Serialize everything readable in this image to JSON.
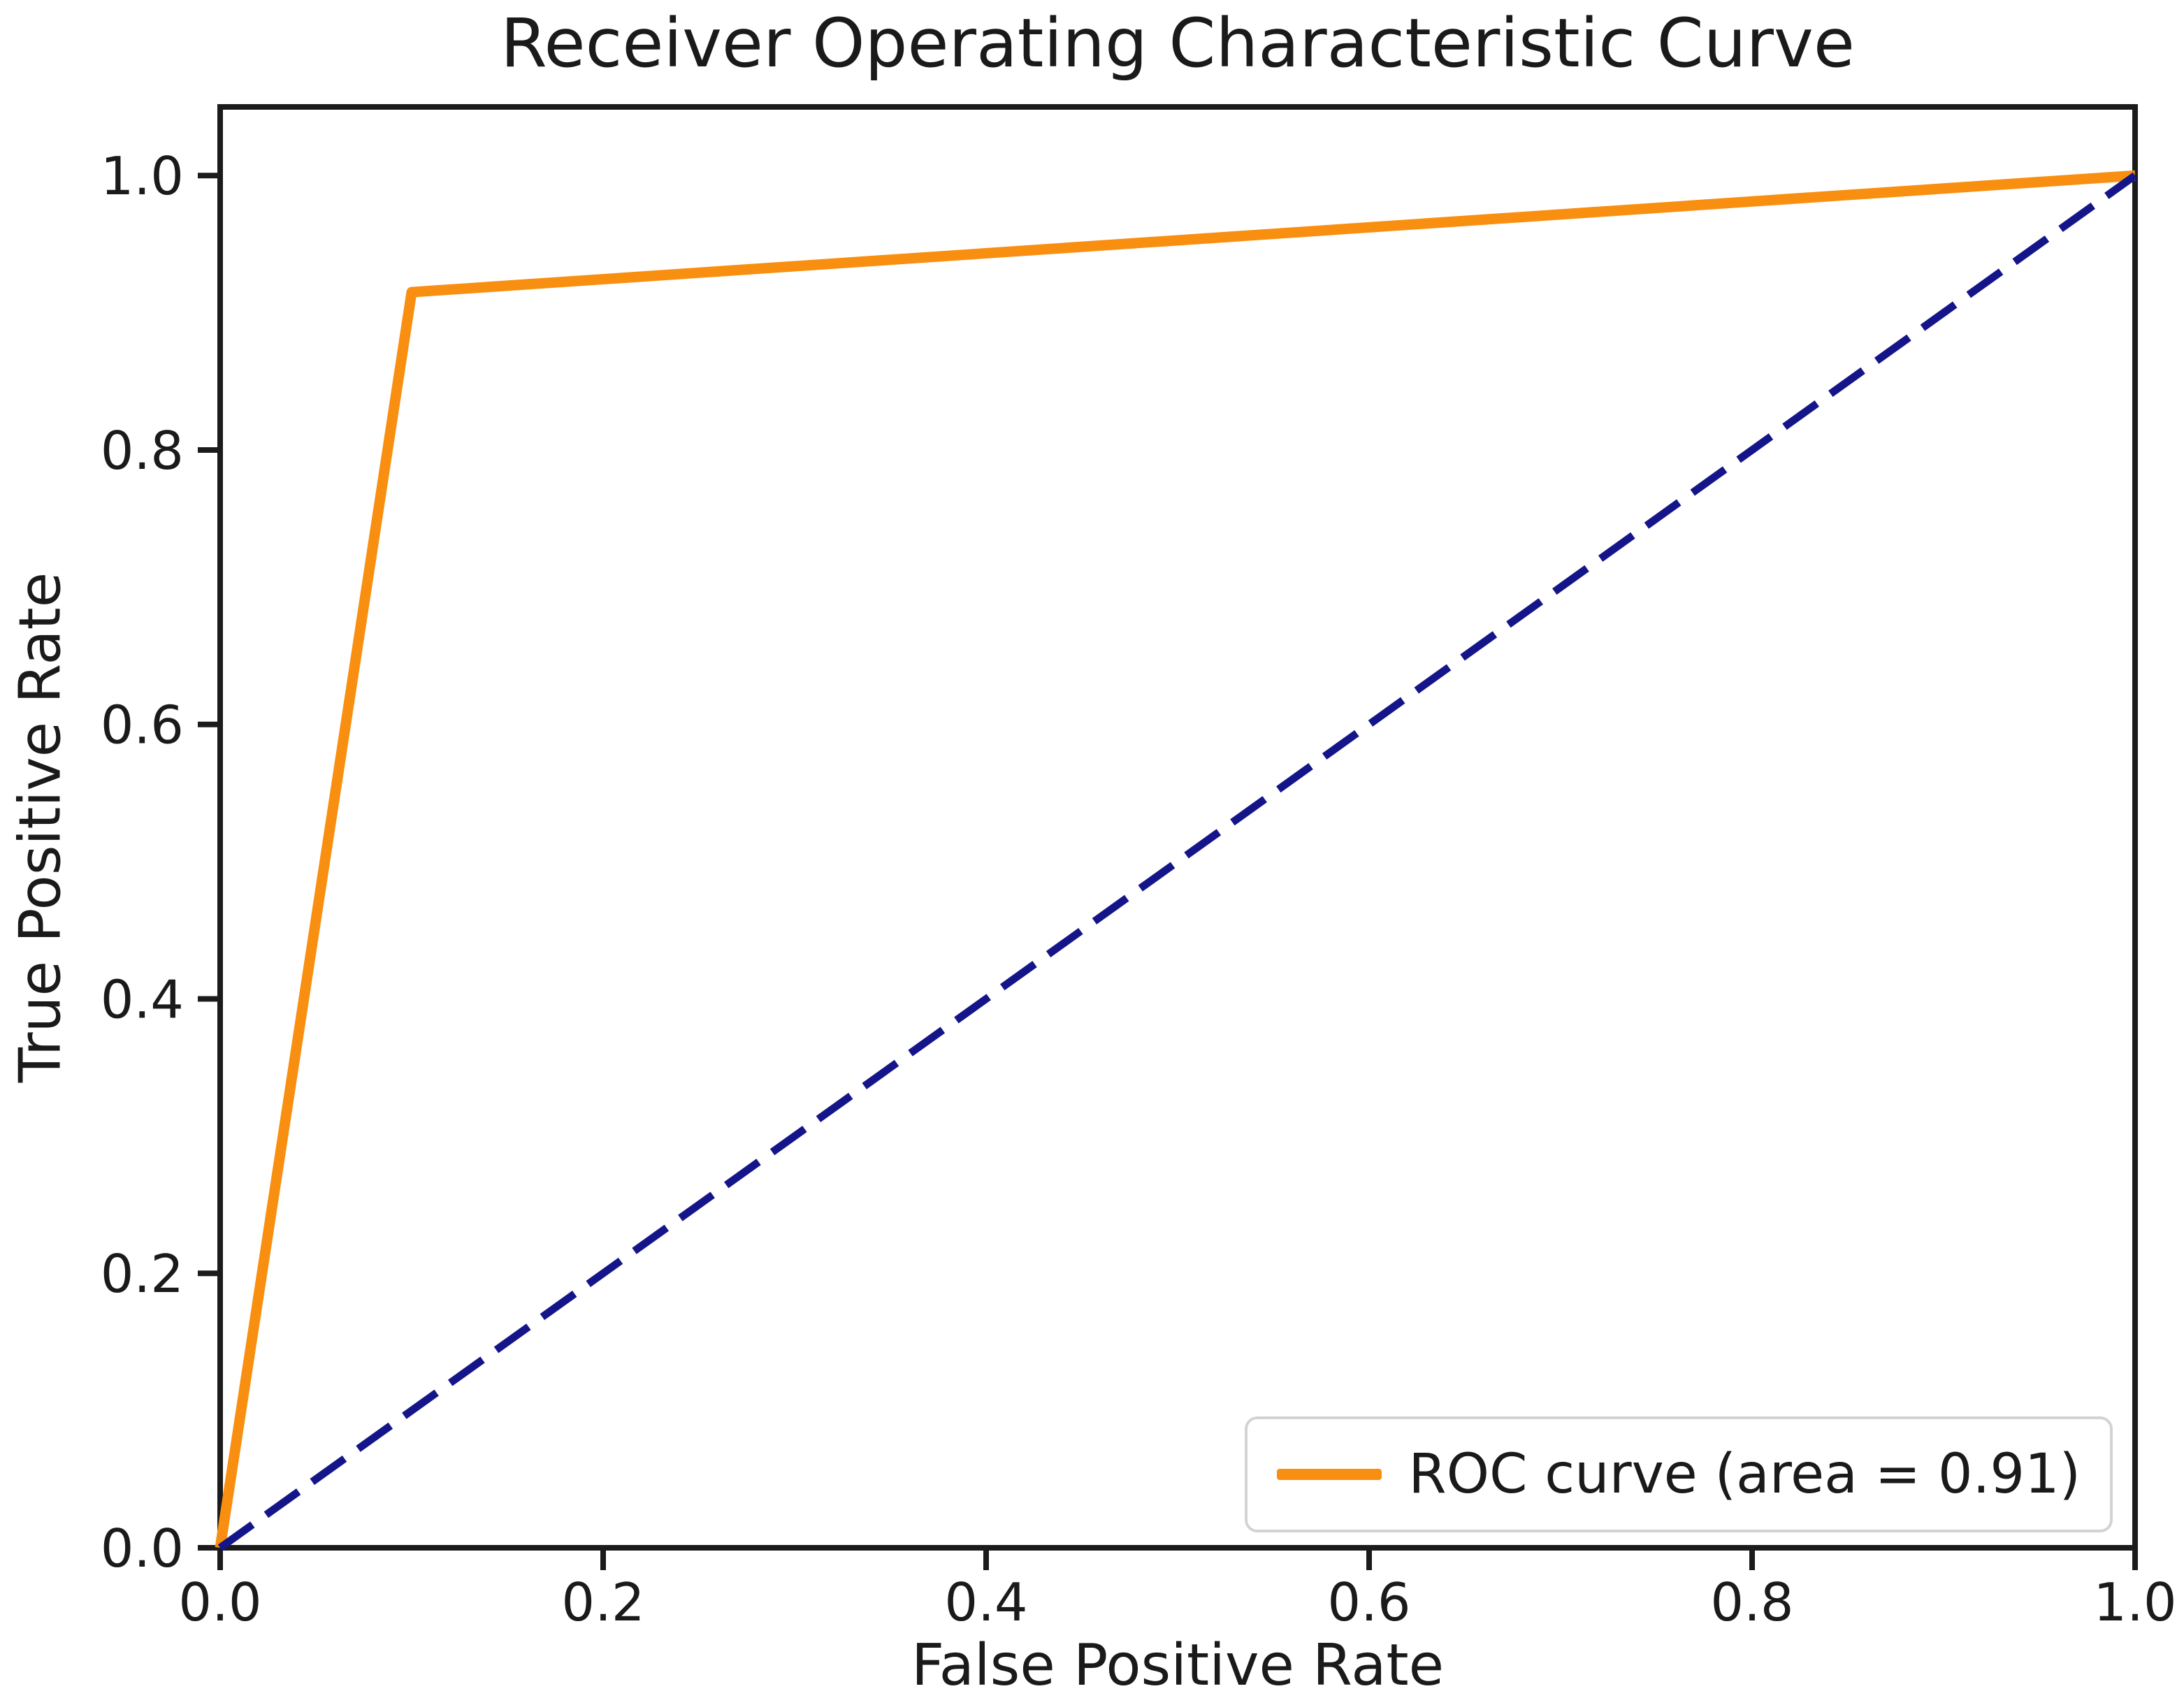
{
  "window": {
    "background": "#ffffff"
  },
  "chart_data": {
    "type": "line",
    "title": "Receiver Operating Characteristic Curve",
    "xlabel": "False Positive Rate",
    "ylabel": "True Positive Rate",
    "xlim": [
      0.0,
      1.0
    ],
    "ylim": [
      0.0,
      1.05
    ],
    "x_ticks": [
      "0.0",
      "0.2",
      "0.4",
      "0.6",
      "0.8",
      "1.0"
    ],
    "y_ticks": [
      "0.0",
      "0.2",
      "0.4",
      "0.6",
      "0.8",
      "1.0"
    ],
    "grid": false,
    "auc": 0.91,
    "legend": {
      "position": "lower right",
      "entries": [
        {
          "label": "ROC curve (area = 0.91)",
          "color": "#f98f10",
          "style": "solid"
        }
      ]
    },
    "series": [
      {
        "name": "ROC curve",
        "color": "#f98f10",
        "style": "solid",
        "width": 15,
        "points": [
          [
            0.0,
            0.0
          ],
          [
            0.1,
            0.915
          ],
          [
            1.0,
            1.0
          ]
        ]
      },
      {
        "name": "chance diagonal",
        "color": "#15158a",
        "style": "dashed",
        "width": 11,
        "points": [
          [
            0.0,
            0.0
          ],
          [
            1.0,
            1.0
          ]
        ]
      }
    ]
  },
  "colors": {
    "axis": "#1b1b1b",
    "tick_text": "#1a1a1a",
    "legend_border": "#d3d3d3"
  }
}
